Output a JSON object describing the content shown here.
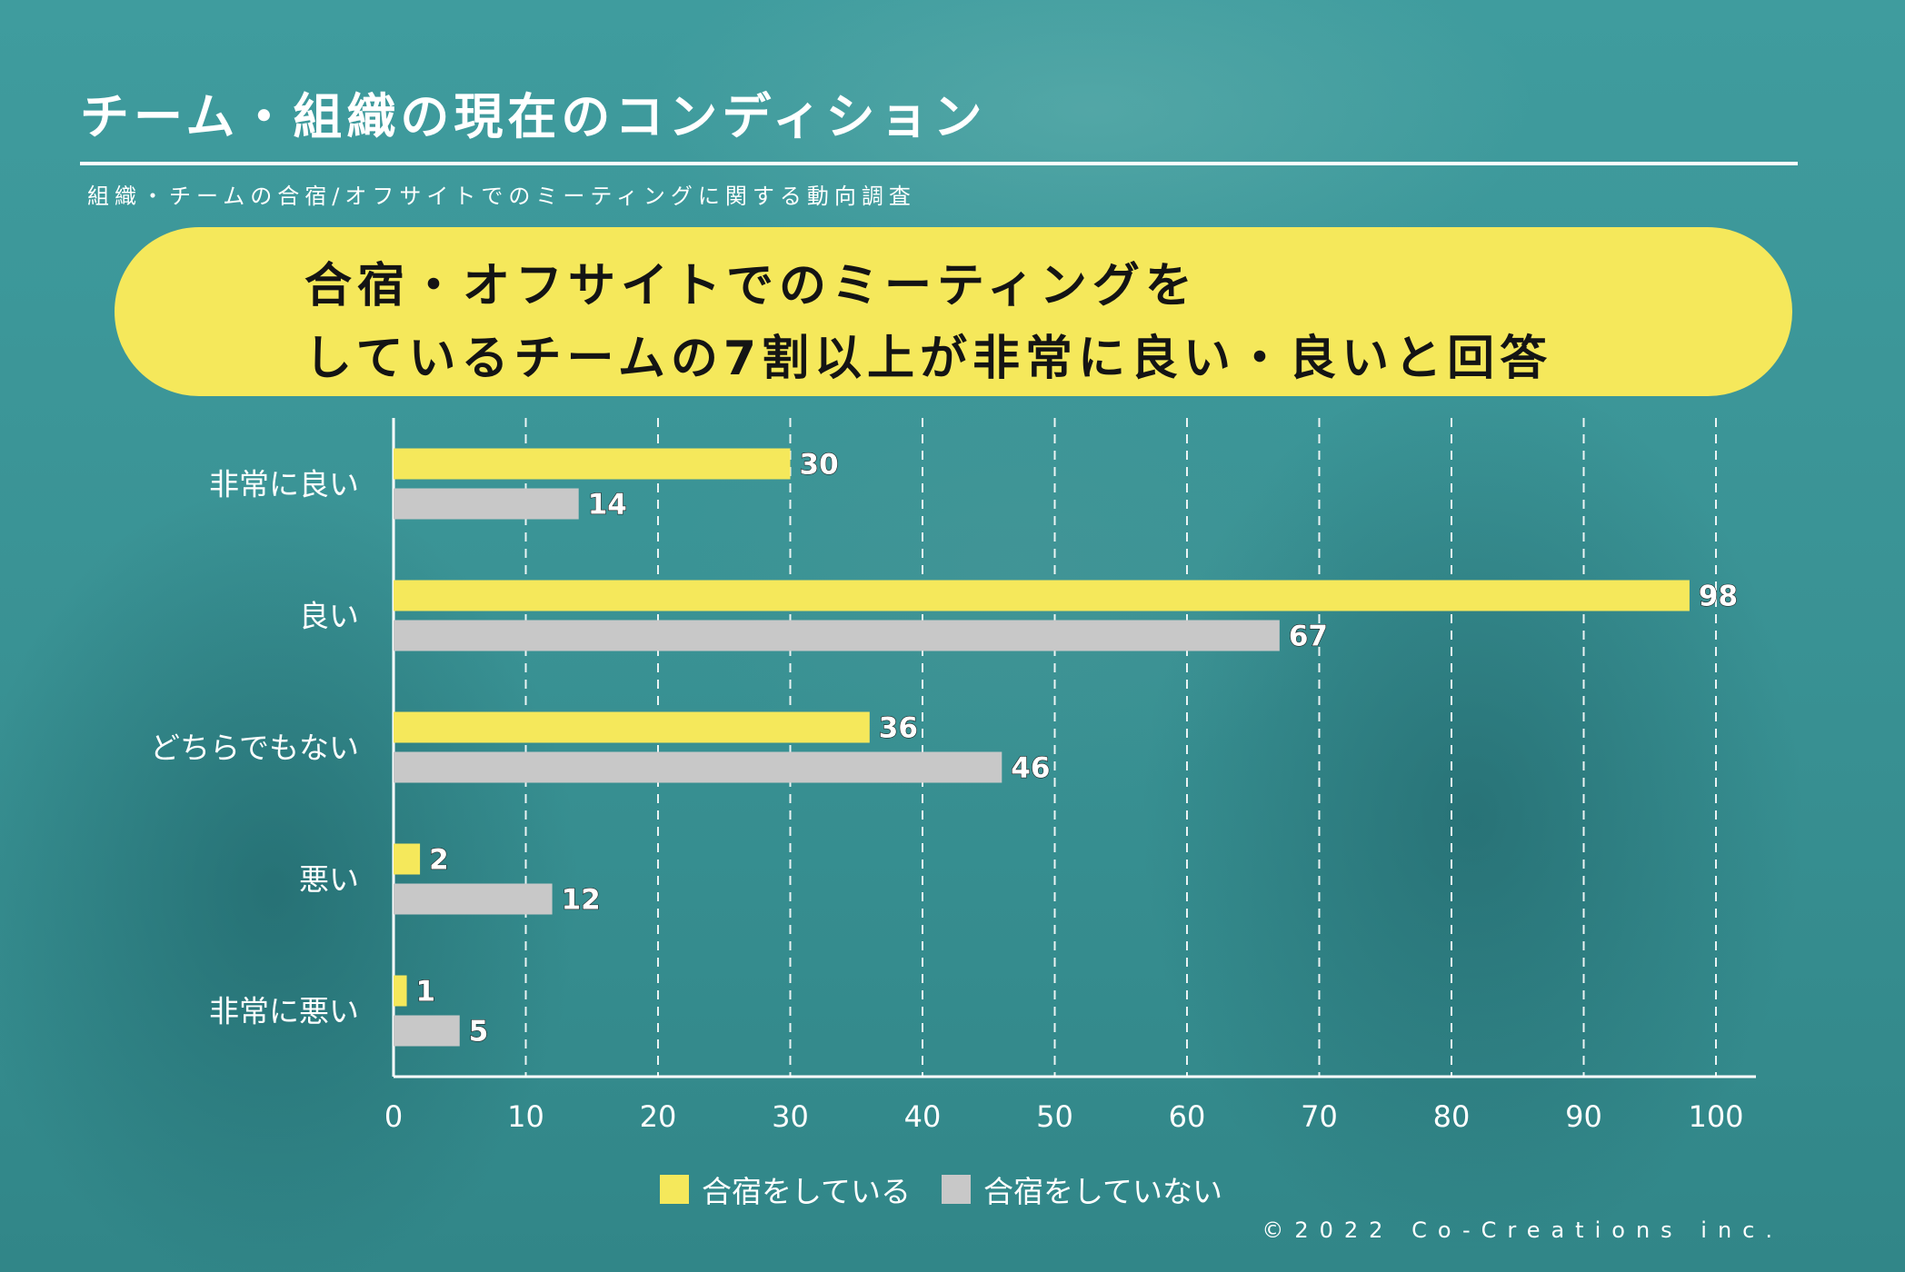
{
  "header": {
    "title": "チーム・組織の現在のコンディション",
    "subtitle": "組織・チームの合宿/オフサイトでのミーティングに関する動向調査"
  },
  "banner": {
    "line1": "合宿・オフサイトでのミーティングを",
    "line2": "しているチームの7割以上が非常に良い・良いと回答"
  },
  "chart_data": {
    "type": "bar",
    "orientation": "horizontal",
    "categories": [
      "非常に良い",
      "良い",
      "どちらでもない",
      "悪い",
      "非常に悪い"
    ],
    "series": [
      {
        "name": "合宿をしている",
        "values": [
          30,
          98,
          36,
          2,
          1
        ],
        "color": "#f5e85b"
      },
      {
        "name": "合宿をしていない",
        "values": [
          14,
          67,
          46,
          12,
          5
        ],
        "color": "#c8c8c8"
      }
    ],
    "xlim": [
      0,
      100
    ],
    "x_ticks": [
      0,
      10,
      20,
      30,
      40,
      50,
      60,
      70,
      80,
      90,
      100
    ],
    "grid": true,
    "legend_position": "bottom"
  },
  "colors": {
    "background": "#3a9395",
    "banner": "#f5e85b",
    "text": "#ffffff"
  },
  "footer": {
    "copyright": "©2022 Co-Creations inc."
  }
}
